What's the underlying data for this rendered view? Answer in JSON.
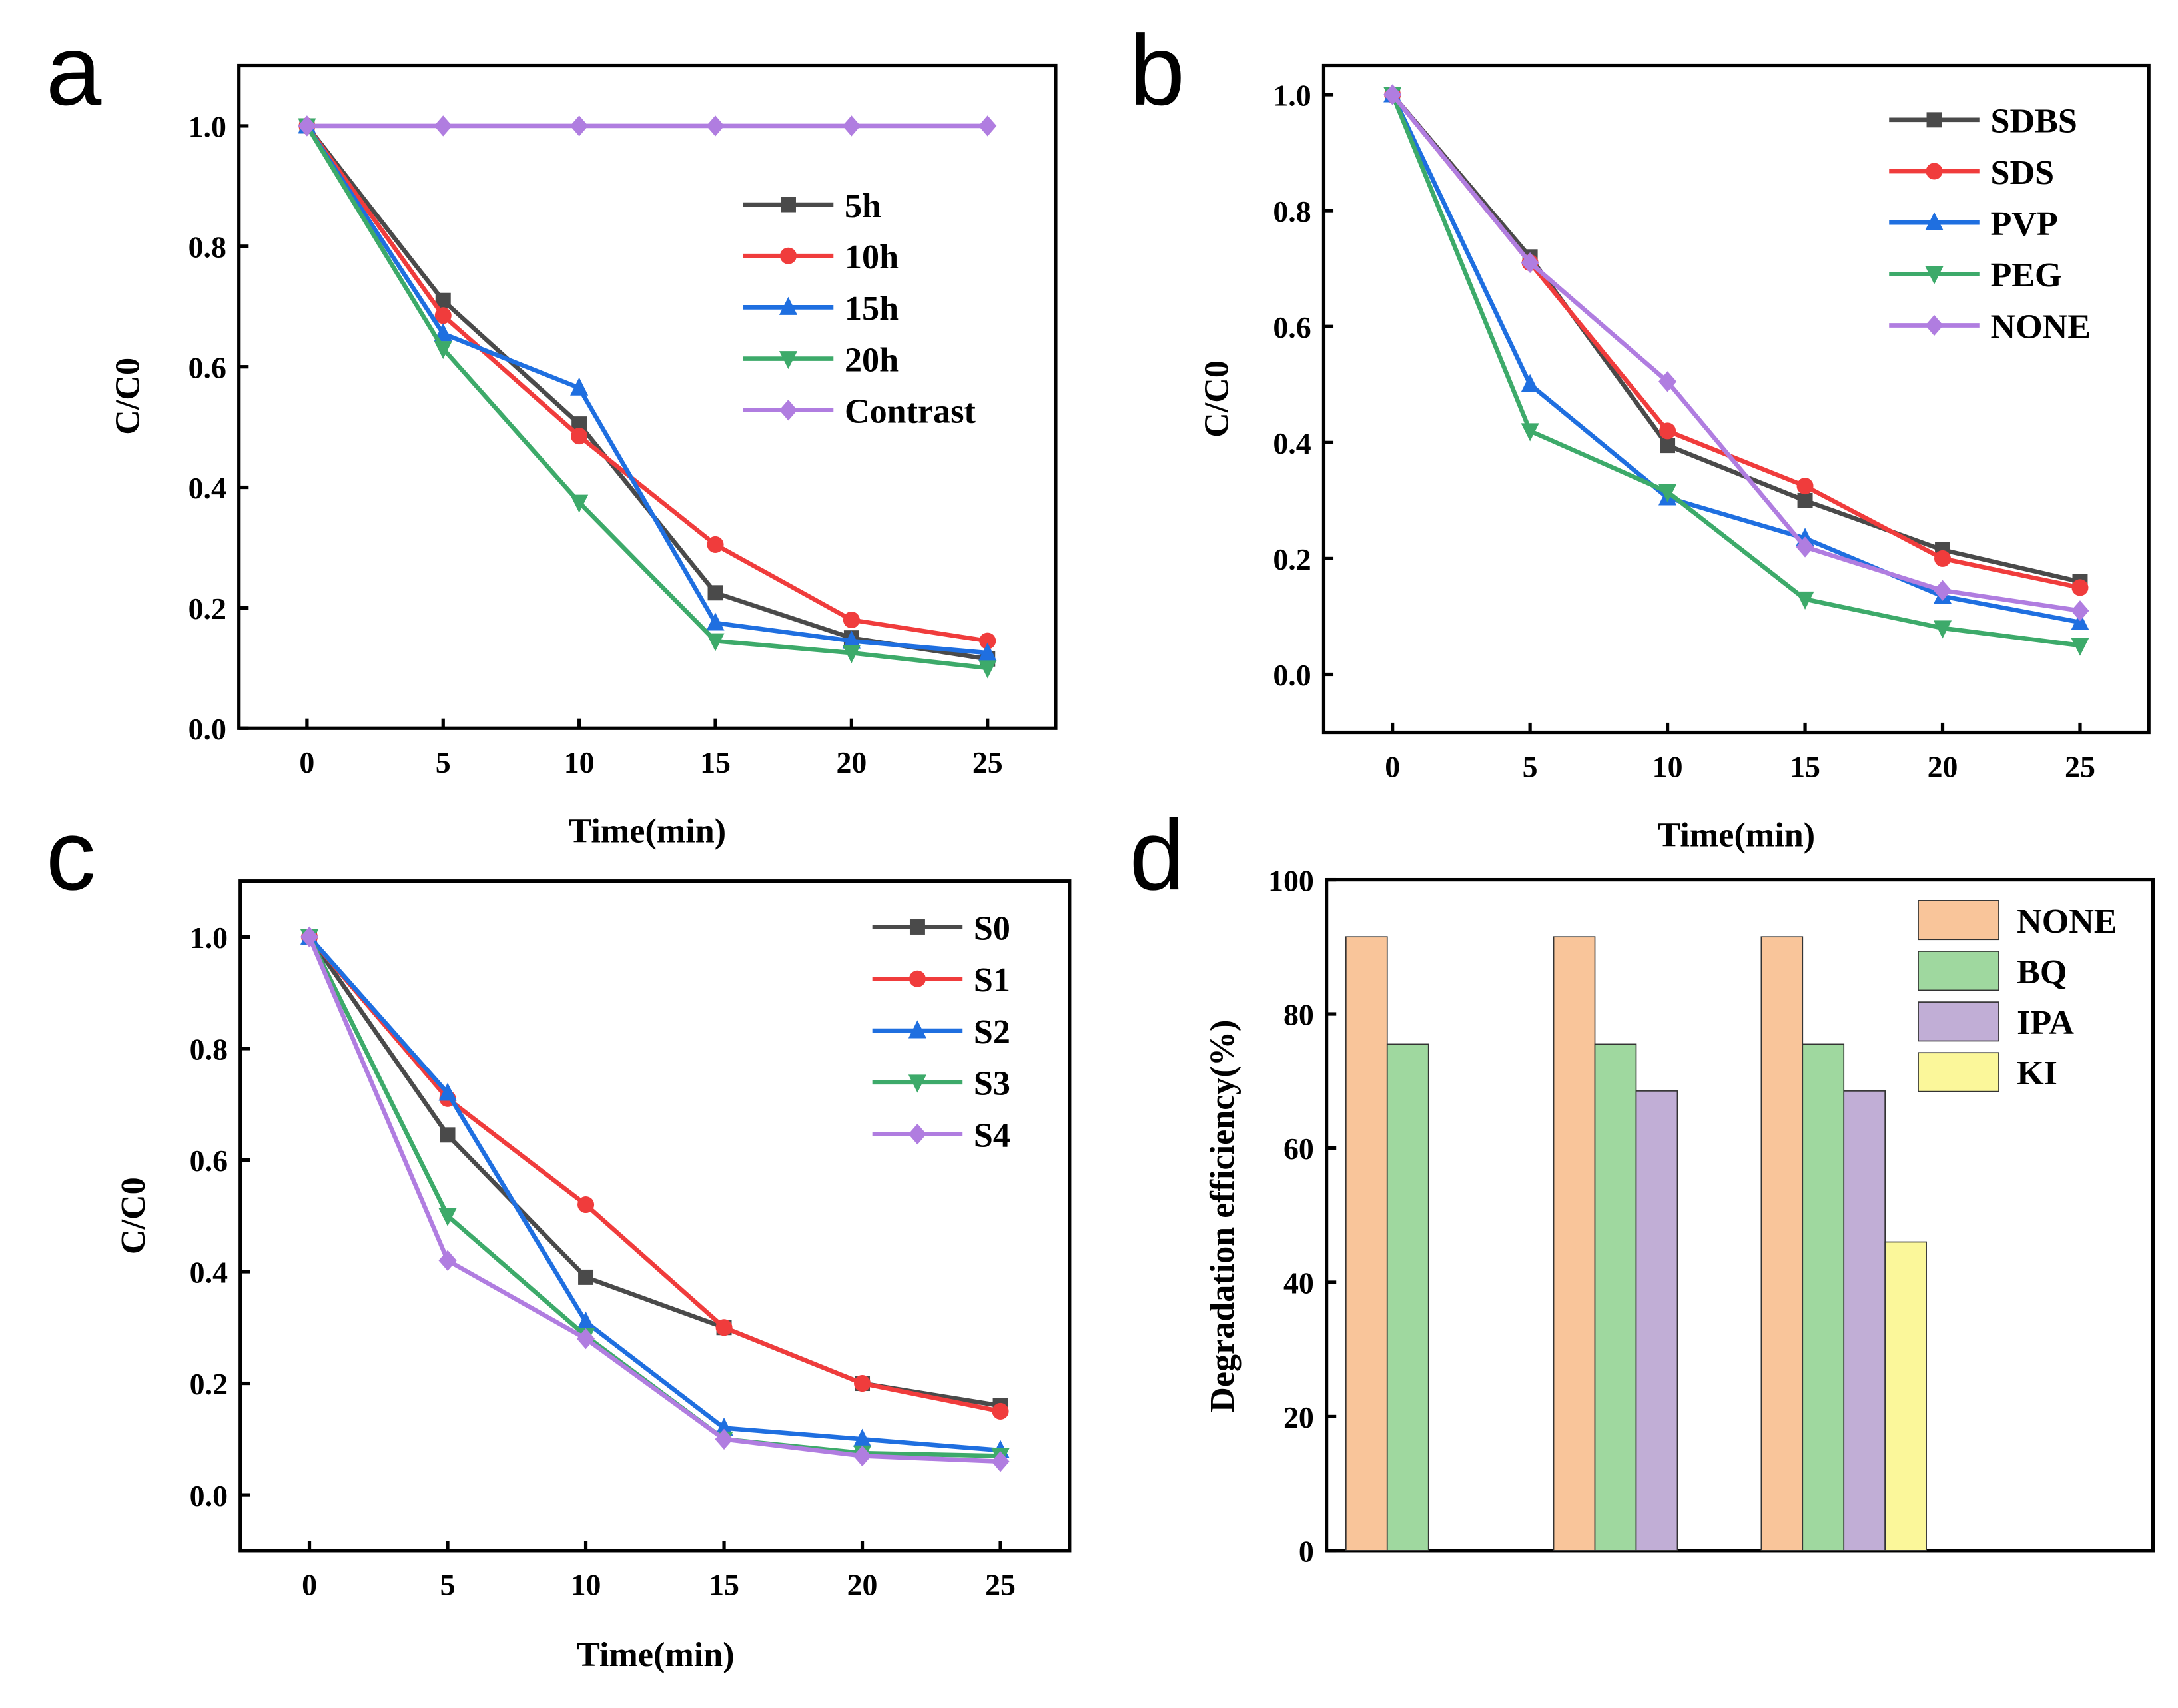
{
  "chart_data": [
    {
      "panel": "a",
      "type": "line",
      "title": "",
      "xlabel": "Time(min)",
      "ylabel": "C/C0",
      "xlim": [
        -2.5,
        27.5
      ],
      "ylim": [
        0,
        1.1
      ],
      "xticks": [
        0,
        5,
        10,
        15,
        20,
        25
      ],
      "yticks": [
        0.0,
        0.2,
        0.4,
        0.6,
        0.8,
        1.0
      ],
      "grid": false,
      "legend_position": "right",
      "x": [
        0,
        5,
        10,
        15,
        20,
        25
      ],
      "series": [
        {
          "name": "5h",
          "color": "#4a4a4a",
          "marker": "square",
          "values": [
            1.0,
            0.71,
            0.505,
            0.225,
            0.15,
            0.115
          ]
        },
        {
          "name": "10h",
          "color": "#f03c3c",
          "marker": "circle",
          "values": [
            1.0,
            0.685,
            0.485,
            0.305,
            0.18,
            0.145
          ]
        },
        {
          "name": "15h",
          "color": "#1f6fe0",
          "marker": "triangle-up",
          "values": [
            1.0,
            0.655,
            0.565,
            0.175,
            0.145,
            0.125
          ]
        },
        {
          "name": "20h",
          "color": "#3daa6a",
          "marker": "triangle-down",
          "values": [
            1.0,
            0.63,
            0.375,
            0.145,
            0.125,
            0.1
          ]
        },
        {
          "name": "Contrast",
          "color": "#b07de0",
          "marker": "diamond",
          "values": [
            1.0,
            1.0,
            1.0,
            1.0,
            1.0,
            1.0
          ]
        }
      ]
    },
    {
      "panel": "b",
      "type": "line",
      "title": "",
      "xlabel": "Time(min)",
      "ylabel": "C/C0",
      "xlim": [
        -2.5,
        27.5
      ],
      "ylim": [
        -0.1,
        1.05
      ],
      "xticks": [
        0,
        5,
        10,
        15,
        20,
        25
      ],
      "yticks": [
        0.0,
        0.2,
        0.4,
        0.6,
        0.8,
        1.0
      ],
      "grid": false,
      "legend_position": "top-right",
      "x": [
        0,
        5,
        10,
        15,
        20,
        25
      ],
      "series": [
        {
          "name": "SDBS",
          "color": "#4a4a4a",
          "marker": "square",
          "values": [
            1.0,
            0.72,
            0.395,
            0.3,
            0.215,
            0.16
          ]
        },
        {
          "name": "SDS",
          "color": "#f03c3c",
          "marker": "circle",
          "values": [
            1.0,
            0.71,
            0.42,
            0.325,
            0.2,
            0.15
          ]
        },
        {
          "name": "PVP",
          "color": "#1f6fe0",
          "marker": "triangle-up",
          "values": [
            1.0,
            0.5,
            0.305,
            0.235,
            0.135,
            0.09
          ]
        },
        {
          "name": "PEG",
          "color": "#3daa6a",
          "marker": "triangle-down",
          "values": [
            1.0,
            0.42,
            0.315,
            0.13,
            0.08,
            0.05
          ]
        },
        {
          "name": "NONE",
          "color": "#b07de0",
          "marker": "diamond",
          "values": [
            1.0,
            0.71,
            0.505,
            0.22,
            0.145,
            0.11
          ]
        }
      ]
    },
    {
      "panel": "c",
      "type": "line",
      "title": "",
      "xlabel": "Time(min)",
      "ylabel": "C/C0",
      "xlim": [
        -2.5,
        27.5
      ],
      "ylim": [
        -0.1,
        1.1
      ],
      "xticks": [
        0,
        5,
        10,
        15,
        20,
        25
      ],
      "yticks": [
        0.0,
        0.2,
        0.4,
        0.6,
        0.8,
        1.0
      ],
      "grid": false,
      "legend_position": "top-right",
      "x": [
        0,
        5,
        10,
        15,
        20,
        25
      ],
      "series": [
        {
          "name": "S0",
          "color": "#4a4a4a",
          "marker": "square",
          "values": [
            1.0,
            0.645,
            0.39,
            0.3,
            0.2,
            0.16
          ]
        },
        {
          "name": "S1",
          "color": "#f03c3c",
          "marker": "circle",
          "values": [
            1.0,
            0.71,
            0.52,
            0.3,
            0.2,
            0.15
          ]
        },
        {
          "name": "S2",
          "color": "#1f6fe0",
          "marker": "triangle-up",
          "values": [
            1.0,
            0.72,
            0.31,
            0.12,
            0.1,
            0.08
          ]
        },
        {
          "name": "S3",
          "color": "#3daa6a",
          "marker": "triangle-down",
          "values": [
            1.0,
            0.5,
            0.285,
            0.1,
            0.075,
            0.07
          ]
        },
        {
          "name": "S4",
          "color": "#b07de0",
          "marker": "diamond",
          "values": [
            1.0,
            0.42,
            0.28,
            0.1,
            0.07,
            0.06
          ]
        }
      ]
    },
    {
      "panel": "d",
      "type": "bar",
      "title": "",
      "xlabel": "",
      "ylabel": "Degradation efficiency(%)",
      "ylim": [
        0,
        100
      ],
      "yticks": [
        0,
        20,
        40,
        60,
        80,
        100
      ],
      "grid": false,
      "legend_position": "top-right",
      "groups": [
        {
          "bars": [
            {
              "name": "NONE",
              "value": 91.5
            },
            {
              "name": "BQ",
              "value": 75.5
            }
          ]
        },
        {
          "bars": [
            {
              "name": "NONE",
              "value": 91.5
            },
            {
              "name": "BQ",
              "value": 75.5
            },
            {
              "name": "IPA",
              "value": 68.5
            }
          ]
        },
        {
          "bars": [
            {
              "name": "NONE",
              "value": 91.5
            },
            {
              "name": "BQ",
              "value": 75.5
            },
            {
              "name": "IPA",
              "value": 68.5
            },
            {
              "name": "KI",
              "value": 46
            }
          ]
        }
      ],
      "legend": [
        {
          "name": "NONE",
          "color": "#f9c59a"
        },
        {
          "name": "BQ",
          "color": "#9fd89f"
        },
        {
          "name": "IPA",
          "color": "#c1aed6"
        },
        {
          "name": "KI",
          "color": "#fbf79a"
        }
      ]
    }
  ]
}
